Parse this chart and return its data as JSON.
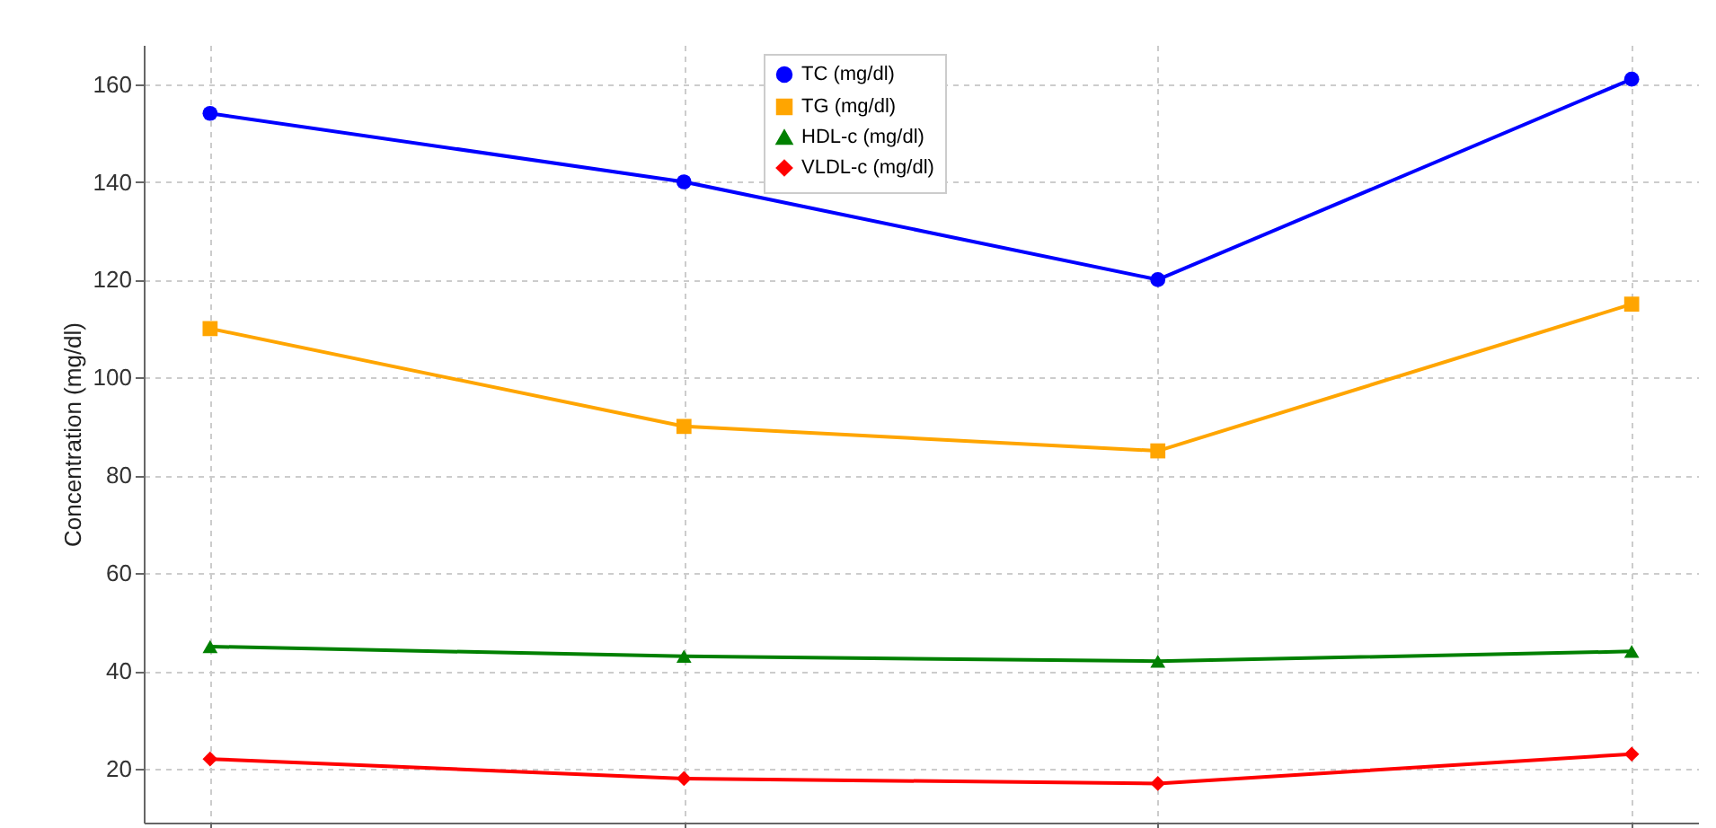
{
  "chart_data": {
    "type": "line",
    "ylabel": "Concentration (mg/dl)",
    "categories": [
      null,
      null,
      null,
      null
    ],
    "series": [
      {
        "name": "TC (mg/dl)",
        "color": "#0000ff",
        "marker": "circle",
        "values": [
          154,
          140,
          120,
          161
        ]
      },
      {
        "name": "TG (mg/dl)",
        "color": "#ffa500",
        "marker": "square",
        "values": [
          110,
          90,
          85,
          115
        ]
      },
      {
        "name": "HDL-c (mg/dl)",
        "color": "#008000",
        "marker": "triangle",
        "values": [
          45,
          43,
          42,
          44
        ]
      },
      {
        "name": "VLDL-c (mg/dl)",
        "color": "#ff0000",
        "marker": "diamond",
        "values": [
          22,
          18,
          17,
          23
        ]
      }
    ],
    "ylim": [
      9,
      168
    ],
    "yticks": [
      20,
      40,
      60,
      80,
      100,
      120,
      140,
      160
    ],
    "grid": true,
    "legend": "top",
    "tick_labels": "y",
    "line_style": "solid"
  }
}
